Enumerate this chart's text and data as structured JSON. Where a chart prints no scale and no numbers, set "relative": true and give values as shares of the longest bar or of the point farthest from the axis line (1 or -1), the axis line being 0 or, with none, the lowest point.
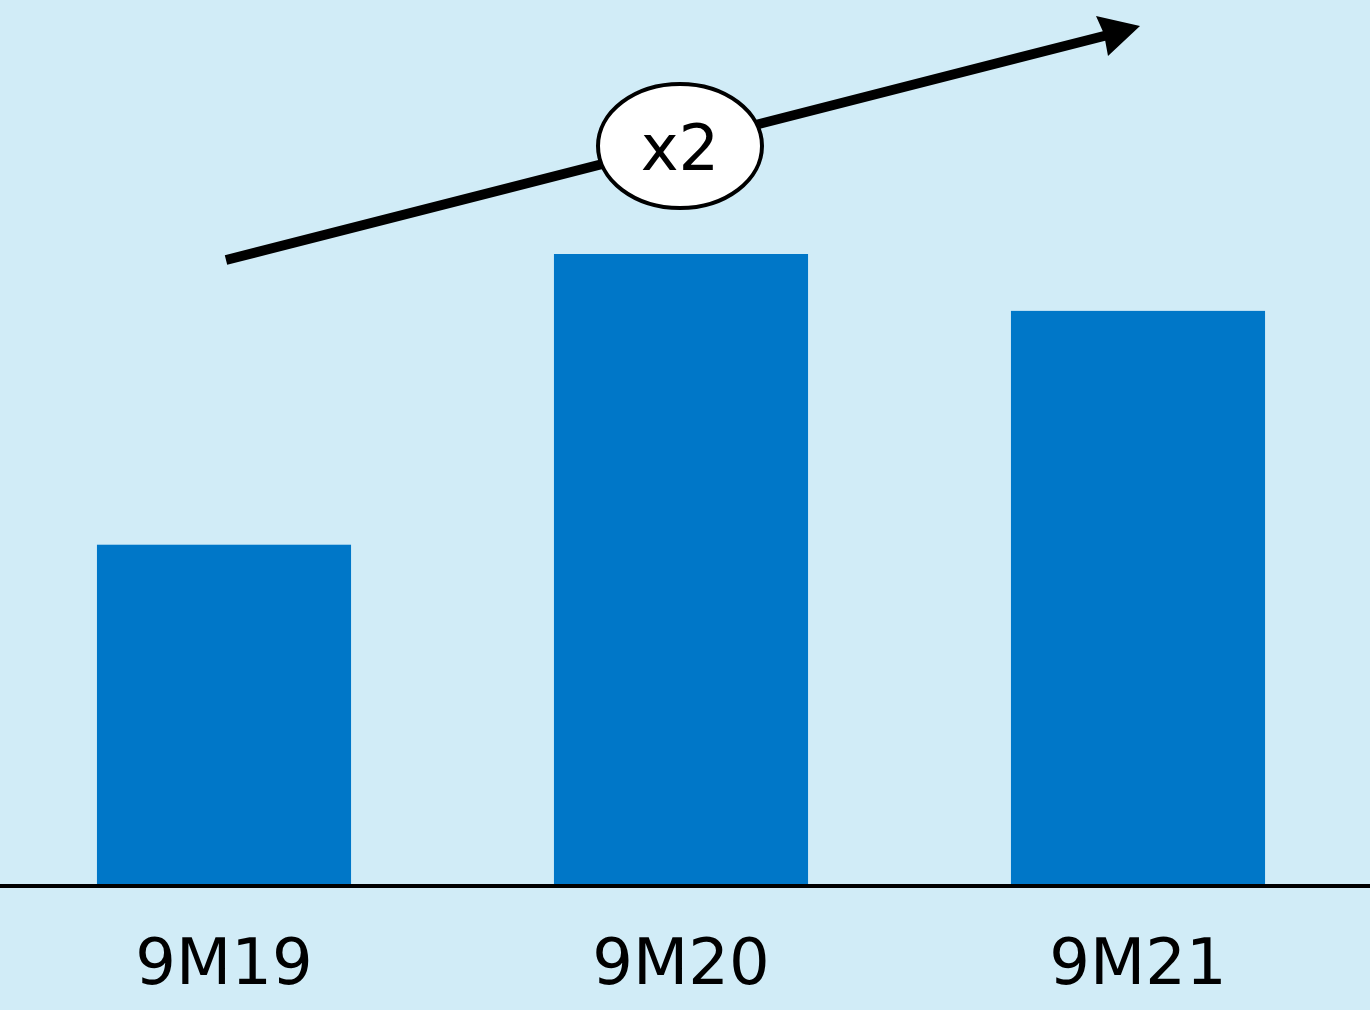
{
  "chart_data": {
    "type": "bar",
    "relative": true,
    "categories": [
      "9M19",
      "9M20",
      "9M21"
    ],
    "values": [
      0.54,
      1,
      0.91
    ],
    "color": "#0077c8",
    "annotations": [
      "x2"
    ]
  }
}
